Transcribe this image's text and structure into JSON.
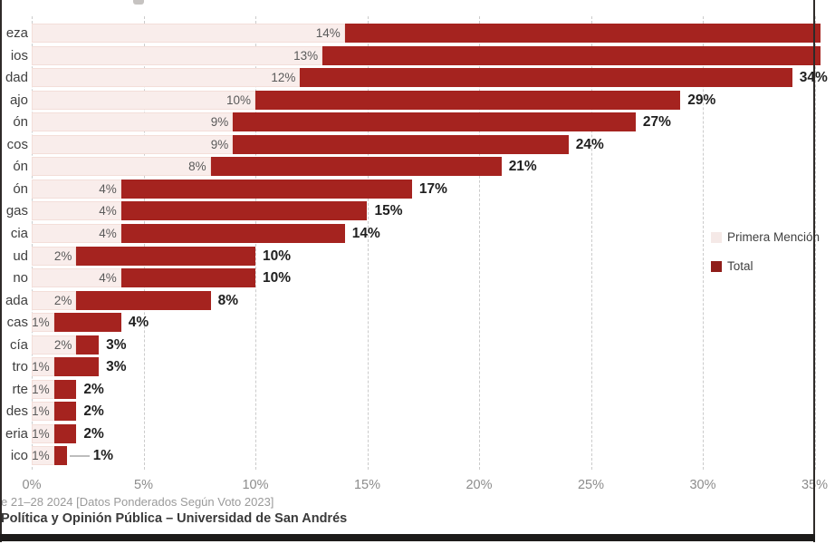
{
  "chart_data": {
    "type": "bar",
    "orientation": "horizontal",
    "series_names": [
      "Primera Mención",
      "Total"
    ],
    "unit": "%",
    "x_ticks": [
      "0%",
      "5%",
      "10%",
      "15%",
      "20%",
      "25%",
      "30%",
      "35%"
    ],
    "x_axis_range_visible": [
      0,
      35
    ],
    "grid": "dashed-vertical",
    "legend_position": "right-middle",
    "note_rows_cut": "category labels truncated at left image edge; top two bars extend past right image edge",
    "rows": [
      {
        "label": "eza",
        "primera_mencion": 14,
        "total": null
      },
      {
        "label": "ios",
        "primera_mencion": 13,
        "total": null
      },
      {
        "label": "dad",
        "primera_mencion": 12,
        "total": 34
      },
      {
        "label": "ajo",
        "primera_mencion": 10,
        "total": 29
      },
      {
        "label": "ón",
        "primera_mencion": 9,
        "total": 27
      },
      {
        "label": "cos",
        "primera_mencion": 9,
        "total": 24
      },
      {
        "label": "ón",
        "primera_mencion": 8,
        "total": 21
      },
      {
        "label": "ón",
        "primera_mencion": 4,
        "total": 17
      },
      {
        "label": "gas",
        "primera_mencion": 4,
        "total": 15
      },
      {
        "label": "cia",
        "primera_mencion": 4,
        "total": 14
      },
      {
        "label": "ud",
        "primera_mencion": 2,
        "total": 10
      },
      {
        "label": "no",
        "primera_mencion": 4,
        "total": 10
      },
      {
        "label": "ada",
        "primera_mencion": 2,
        "total": 8
      },
      {
        "label": "cas",
        "primera_mencion": 1,
        "total": 4
      },
      {
        "label": "cía",
        "primera_mencion": 2,
        "total": 3
      },
      {
        "label": "tro",
        "primera_mencion": 1,
        "total": 3
      },
      {
        "label": "rte",
        "primera_mencion": 1,
        "total": 2
      },
      {
        "label": "des",
        "primera_mencion": 1,
        "total": 2
      },
      {
        "label": "eria",
        "primera_mencion": 1,
        "total": 2
      },
      {
        "label": "ico",
        "primera_mencion": 1,
        "total": 1,
        "leader": true
      }
    ]
  },
  "legend": {
    "items": [
      {
        "label": "Primera Mención",
        "color": "#f5e9e7"
      },
      {
        "label": "Total",
        "color": "#8f1d19"
      }
    ]
  },
  "footer": {
    "line1": "e 21–28 2024 [Datos Ponderados Según Voto 2023]",
    "line2": "Política y Opinión Pública – Universidad de San Andrés"
  },
  "colors": {
    "bar_total": "#a5231f",
    "bar_primera_mencion": "#f9edeb",
    "gridline": "#cbcbcb",
    "tick_text": "#8c8c8c",
    "category_text": "#3f3f3f",
    "value_text_primera": "#5a5a5a",
    "value_text_total": "#1f1f1f",
    "frame": "#1d1b1a"
  }
}
